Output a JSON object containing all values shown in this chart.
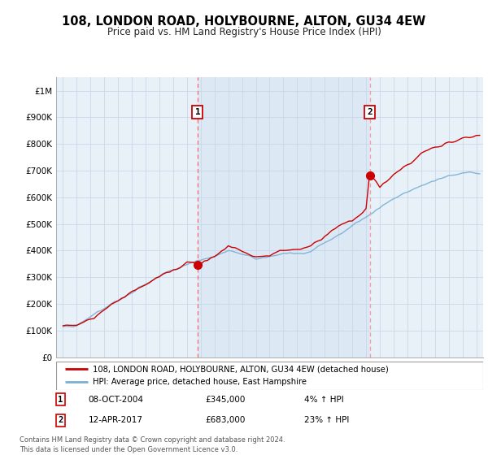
{
  "title": "108, LONDON ROAD, HOLYBOURNE, ALTON, GU34 4EW",
  "subtitle": "Price paid vs. HM Land Registry's House Price Index (HPI)",
  "plot_bg_color": "#ddeeff",
  "sale1_date_x": 2004.77,
  "sale1_price": 345000,
  "sale1_label": "1",
  "sale2_date_x": 2017.28,
  "sale2_price": 683000,
  "sale2_label": "2",
  "legend_line1": "108, LONDON ROAD, HOLYBOURNE, ALTON, GU34 4EW (detached house)",
  "legend_line2": "HPI: Average price, detached house, East Hampshire",
  "note1_num": "1",
  "note1_date": "08-OCT-2004",
  "note1_price": "£345,000",
  "note1_hpi": "4% ↑ HPI",
  "note2_num": "2",
  "note2_date": "12-APR-2017",
  "note2_price": "£683,000",
  "note2_hpi": "23% ↑ HPI",
  "footer": "Contains HM Land Registry data © Crown copyright and database right 2024.\nThis data is licensed under the Open Government Licence v3.0.",
  "ylim_max": 1050000,
  "xlim_start": 1994.5,
  "xlim_end": 2025.5,
  "red_color": "#cc0000",
  "blue_color": "#7aafd4",
  "yticks": [
    0,
    100000,
    200000,
    300000,
    400000,
    500000,
    600000,
    700000,
    800000,
    900000,
    1000000
  ],
  "ylabels": [
    "£0",
    "£100K",
    "£200K",
    "£300K",
    "£400K",
    "£500K",
    "£600K",
    "£700K",
    "£800K",
    "£900K",
    "£1M"
  ]
}
